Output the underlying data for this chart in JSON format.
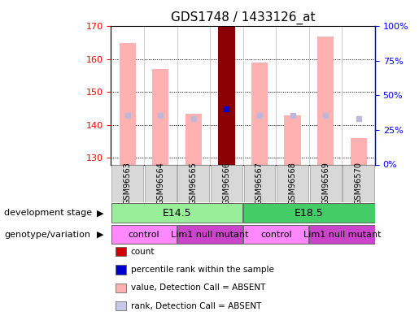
{
  "title": "GDS1748 / 1433126_at",
  "samples": [
    "GSM96563",
    "GSM96564",
    "GSM96565",
    "GSM96566",
    "GSM96567",
    "GSM96568",
    "GSM96569",
    "GSM96570"
  ],
  "ylim_left": [
    128,
    170
  ],
  "ylim_right": [
    0,
    100
  ],
  "yticks_left": [
    130,
    140,
    150,
    160,
    170
  ],
  "yticks_right": [
    0,
    25,
    50,
    75,
    100
  ],
  "bar_values": [
    165,
    157,
    143.5,
    170,
    159,
    143,
    167,
    136
  ],
  "bar_bottom": 128,
  "rank_values": [
    143,
    143,
    142,
    145,
    143,
    143,
    143,
    142
  ],
  "highlighted_bar": 3,
  "bar_color_normal": "#ffb0b0",
  "bar_color_highlight": "#8b0000",
  "rank_marker_highlight": "#0000cc",
  "rank_marker_absent": "#c0b8d8",
  "detection_absent": [
    true,
    true,
    true,
    false,
    true,
    true,
    true,
    true
  ],
  "dev_stage_groups": [
    {
      "label": "E14.5",
      "start": 0,
      "end": 3,
      "color": "#99ee99"
    },
    {
      "label": "E18.5",
      "start": 4,
      "end": 7,
      "color": "#44cc66"
    }
  ],
  "genotype_groups": [
    {
      "label": "control",
      "start": 0,
      "end": 1,
      "color": "#ff88ff"
    },
    {
      "label": "Lim1 null mutant",
      "start": 2,
      "end": 3,
      "color": "#cc44cc"
    },
    {
      "label": "control",
      "start": 4,
      "end": 5,
      "color": "#ff88ff"
    },
    {
      "label": "Lim1 null mutant",
      "start": 6,
      "end": 7,
      "color": "#cc44cc"
    }
  ],
  "legend_items": [
    {
      "label": "count",
      "color": "#cc0000"
    },
    {
      "label": "percentile rank within the sample",
      "color": "#0000cc"
    },
    {
      "label": "value, Detection Call = ABSENT",
      "color": "#ffb0b0"
    },
    {
      "label": "rank, Detection Call = ABSENT",
      "color": "#c8c8e8"
    }
  ],
  "row_labels": [
    "development stage",
    "genotype/variation"
  ],
  "title_fontsize": 11,
  "tick_fontsize": 8,
  "label_fontsize": 8
}
